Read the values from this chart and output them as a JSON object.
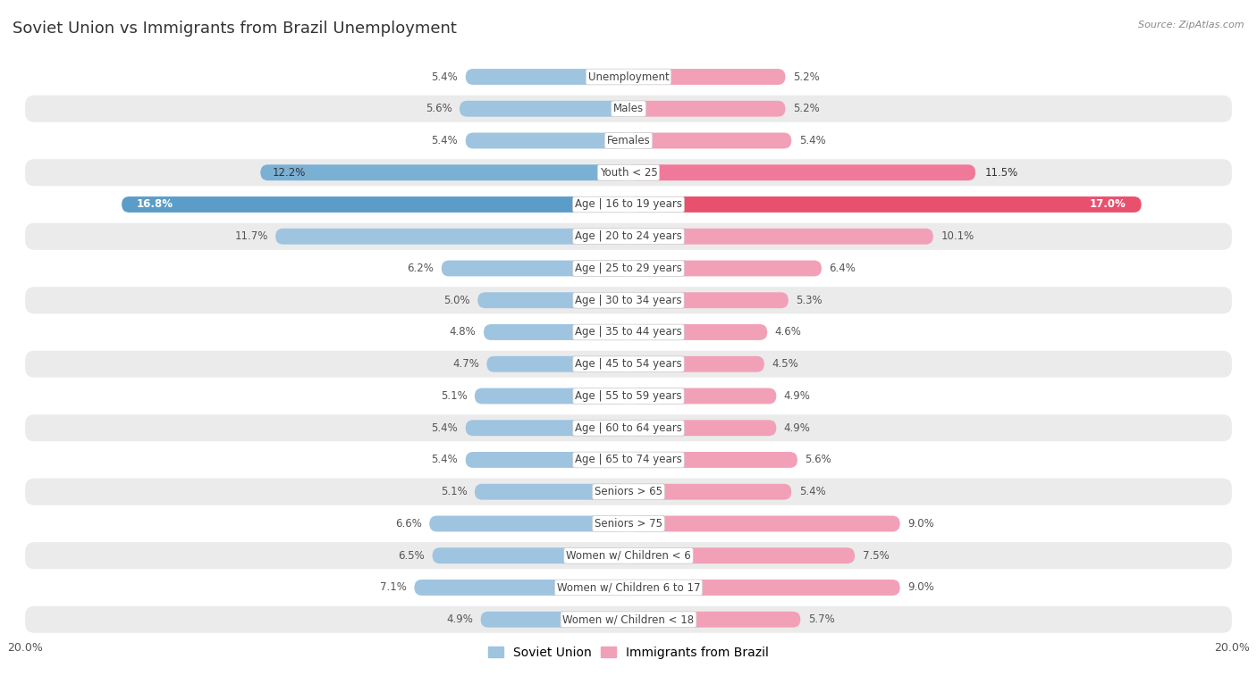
{
  "title": "Soviet Union vs Immigrants from Brazil Unemployment",
  "source": "Source: ZipAtlas.com",
  "categories": [
    "Unemployment",
    "Males",
    "Females",
    "Youth < 25",
    "Age | 16 to 19 years",
    "Age | 20 to 24 years",
    "Age | 25 to 29 years",
    "Age | 30 to 34 years",
    "Age | 35 to 44 years",
    "Age | 45 to 54 years",
    "Age | 55 to 59 years",
    "Age | 60 to 64 years",
    "Age | 65 to 74 years",
    "Seniors > 65",
    "Seniors > 75",
    "Women w/ Children < 6",
    "Women w/ Children 6 to 17",
    "Women w/ Children < 18"
  ],
  "soviet_union": [
    5.4,
    5.6,
    5.4,
    12.2,
    16.8,
    11.7,
    6.2,
    5.0,
    4.8,
    4.7,
    5.1,
    5.4,
    5.4,
    5.1,
    6.6,
    6.5,
    7.1,
    4.9
  ],
  "brazil": [
    5.2,
    5.2,
    5.4,
    11.5,
    17.0,
    10.1,
    6.4,
    5.3,
    4.6,
    4.5,
    4.9,
    4.9,
    5.6,
    5.4,
    9.0,
    7.5,
    9.0,
    5.7
  ],
  "soviet_color": "#9ec4e0",
  "brazil_color": "#f2a0b8",
  "soviet_color_youth": "#7ab0d4",
  "brazil_color_youth": "#f07898",
  "soviet_color_highlight": "#5b9dc8",
  "brazil_color_highlight": "#e8506e",
  "row_bg_white": "#ffffff",
  "row_bg_gray": "#ebebeb",
  "axis_limit": 20.0,
  "bar_height": 0.62,
  "title_fontsize": 13,
  "label_fontsize": 8.5,
  "tick_fontsize": 9,
  "legend_fontsize": 10,
  "value_label_color": "#555555",
  "value_label_white": "#ffffff"
}
